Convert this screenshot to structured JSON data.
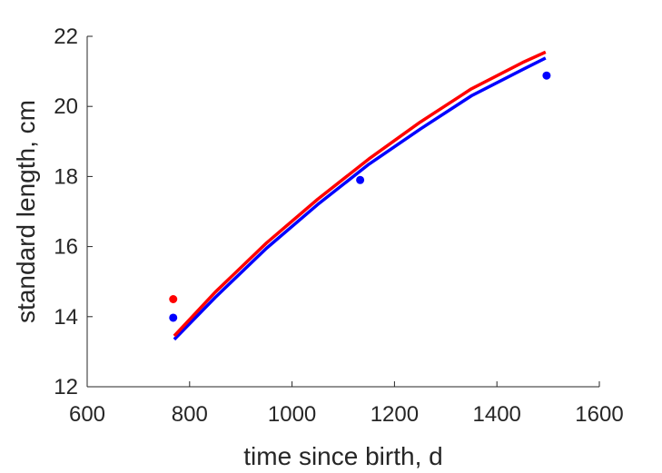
{
  "chart_data": {
    "type": "line",
    "xlabel": "time since birth, d",
    "ylabel": "standard length, cm",
    "xlim": [
      600,
      1600
    ],
    "ylim": [
      12,
      22
    ],
    "xticks": [
      600,
      800,
      1000,
      1200,
      1400,
      1600
    ],
    "yticks": [
      12,
      14,
      16,
      18,
      20,
      22
    ],
    "xtick_labels": [
      "600",
      "800",
      "1000",
      "1200",
      "1400",
      "1600"
    ],
    "ytick_labels": [
      "12",
      "14",
      "16",
      "18",
      "20",
      "22"
    ],
    "grid": false,
    "series": [
      {
        "kind": "line",
        "color": "#0000ff",
        "x": [
          770,
          850,
          950,
          1050,
          1150,
          1250,
          1350,
          1450,
          1495
        ],
        "y": [
          13.35,
          14.55,
          15.95,
          17.2,
          18.35,
          19.35,
          20.3,
          21.05,
          21.38
        ]
      },
      {
        "kind": "line",
        "color": "#ff0000",
        "x": [
          770,
          850,
          950,
          1050,
          1150,
          1250,
          1350,
          1450,
          1495
        ],
        "y": [
          13.45,
          14.7,
          16.1,
          17.35,
          18.5,
          19.55,
          20.5,
          21.25,
          21.55
        ]
      },
      {
        "kind": "scatter",
        "color": "#0000ff",
        "x": [
          768,
          1133,
          1497
        ],
        "y": [
          13.97,
          17.9,
          20.88
        ]
      },
      {
        "kind": "scatter",
        "color": "#ff0000",
        "x": [
          768
        ],
        "y": [
          14.5
        ]
      }
    ]
  }
}
